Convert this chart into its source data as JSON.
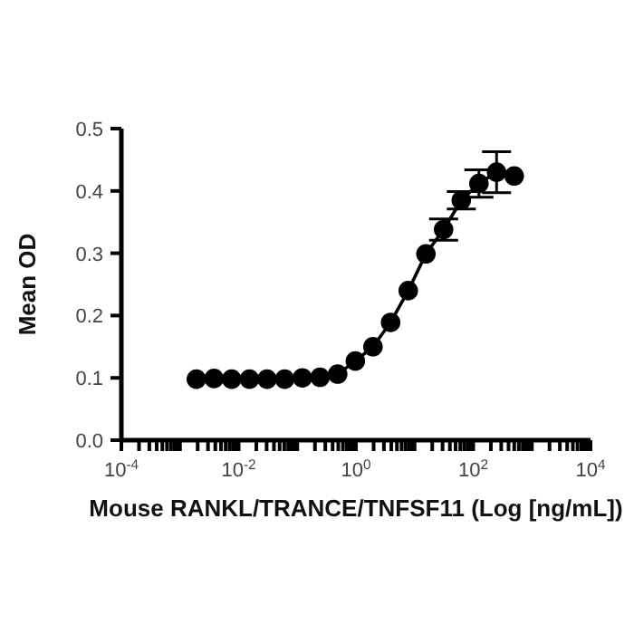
{
  "chart_data": {
    "type": "line",
    "xlabel": "Mouse RANKL/TRANCE/TNFSF11 (Log [ng/mL])",
    "ylabel": "Mean OD",
    "log": "x",
    "grid": false,
    "legend": false,
    "marker": "circle",
    "line_style": "solid",
    "xlim": [
      0.0001,
      10000
    ],
    "xticks": [
      {
        "value": 0.0001,
        "label": "10$^{-4}$"
      },
      {
        "value": 0.0002,
        "label": null
      },
      {
        "value": 0.0003,
        "label": null
      },
      {
        "value": 0.0004,
        "label": null
      },
      {
        "value": 0.0005,
        "label": null
      },
      {
        "value": 0.0006,
        "label": null
      },
      {
        "value": 0.0007,
        "label": null
      },
      {
        "value": 0.0008,
        "label": null
      },
      {
        "value": 0.0009,
        "label": null
      },
      {
        "value": 0.001,
        "label": null
      },
      {
        "value": 0.002,
        "label": null
      },
      {
        "value": 0.003,
        "label": null
      },
      {
        "value": 0.004,
        "label": null
      },
      {
        "value": 0.005,
        "label": null
      },
      {
        "value": 0.006,
        "label": null
      },
      {
        "value": 0.007,
        "label": null
      },
      {
        "value": 0.008,
        "label": null
      },
      {
        "value": 0.009,
        "label": null
      },
      {
        "value": 0.01,
        "label": "10$^{-2}$"
      },
      {
        "value": 0.02,
        "label": null
      },
      {
        "value": 0.03,
        "label": null
      },
      {
        "value": 0.04,
        "label": null
      },
      {
        "value": 0.05,
        "label": null
      },
      {
        "value": 0.06,
        "label": null
      },
      {
        "value": 0.07,
        "label": null
      },
      {
        "value": 0.08,
        "label": null
      },
      {
        "value": 0.09,
        "label": null
      },
      {
        "value": 0.1,
        "label": null
      },
      {
        "value": 0.2,
        "label": null
      },
      {
        "value": 0.3,
        "label": null
      },
      {
        "value": 0.4,
        "label": null
      },
      {
        "value": 0.5,
        "label": null
      },
      {
        "value": 0.6,
        "label": null
      },
      {
        "value": 0.7,
        "label": null
      },
      {
        "value": 0.8,
        "label": null
      },
      {
        "value": 0.9,
        "label": null
      },
      {
        "value": 1,
        "label": "10$^{0}$"
      },
      {
        "value": 2,
        "label": null
      },
      {
        "value": 3,
        "label": null
      },
      {
        "value": 4,
        "label": null
      },
      {
        "value": 5,
        "label": null
      },
      {
        "value": 6,
        "label": null
      },
      {
        "value": 7,
        "label": null
      },
      {
        "value": 8,
        "label": null
      },
      {
        "value": 9,
        "label": null
      },
      {
        "value": 10,
        "label": null
      },
      {
        "value": 20,
        "label": null
      },
      {
        "value": 30,
        "label": null
      },
      {
        "value": 40,
        "label": null
      },
      {
        "value": 50,
        "label": null
      },
      {
        "value": 60,
        "label": null
      },
      {
        "value": 70,
        "label": null
      },
      {
        "value": 80,
        "label": null
      },
      {
        "value": 90,
        "label": null
      },
      {
        "value": 100,
        "label": "10$^{2}$"
      },
      {
        "value": 200,
        "label": null
      },
      {
        "value": 300,
        "label": null
      },
      {
        "value": 400,
        "label": null
      },
      {
        "value": 500,
        "label": null
      },
      {
        "value": 600,
        "label": null
      },
      {
        "value": 700,
        "label": null
      },
      {
        "value": 800,
        "label": null
      },
      {
        "value": 900,
        "label": null
      },
      {
        "value": 1000,
        "label": null
      },
      {
        "value": 2000,
        "label": null
      },
      {
        "value": 3000,
        "label": null
      },
      {
        "value": 4000,
        "label": null
      },
      {
        "value": 5000,
        "label": null
      },
      {
        "value": 6000,
        "label": null
      },
      {
        "value": 7000,
        "label": null
      },
      {
        "value": 8000,
        "label": null
      },
      {
        "value": 9000,
        "label": null
      },
      {
        "value": 10000,
        "label": "10$^{4}$"
      }
    ],
    "ylim": [
      0,
      0.5
    ],
    "yticks": [
      {
        "value": 0,
        "label": "0.0"
      },
      {
        "value": 0.1,
        "label": "0.1"
      },
      {
        "value": 0.2,
        "label": "0.2"
      },
      {
        "value": 0.3,
        "label": "0.3"
      },
      {
        "value": 0.4,
        "label": "0.4"
      },
      {
        "value": 0.5,
        "label": "0.5"
      }
    ],
    "x": [
      0.0019,
      0.0038,
      0.0076,
      0.0153,
      0.0305,
      0.061,
      0.122,
      0.244,
      0.488,
      0.977,
      1.95,
      3.9,
      7.8,
      15.6,
      31.25,
      62.5,
      125,
      250,
      500
    ],
    "series": [
      {
        "color": "#000000",
        "values": [
          0.098,
          0.099,
          0.098,
          0.098,
          0.098,
          0.098,
          0.1,
          0.101,
          0.106,
          0.127,
          0.15,
          0.189,
          0.24,
          0.299,
          0.338,
          0.385,
          0.412,
          0.43,
          0.424
        ],
        "errors": [
          null,
          null,
          null,
          null,
          null,
          null,
          null,
          null,
          null,
          null,
          null,
          null,
          null,
          null,
          0.017,
          0.014,
          0.022,
          0.033,
          null
        ]
      }
    ]
  }
}
